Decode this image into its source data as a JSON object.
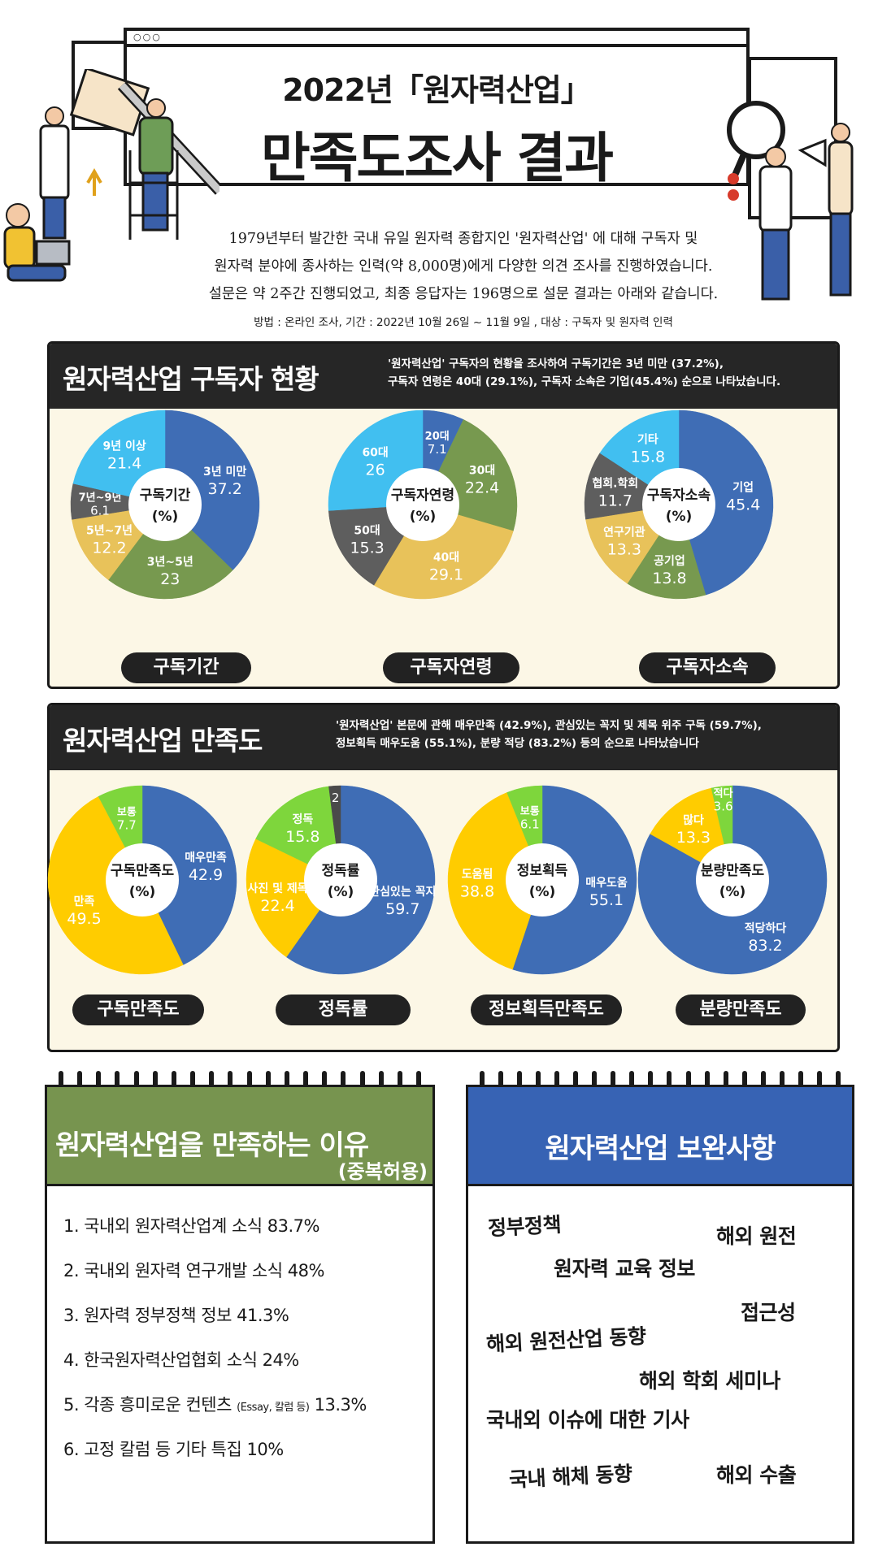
{
  "header": {
    "title_line1": "2022년「원자력산업」",
    "title_line2": "만족도조사 결과",
    "intro_lines": [
      "1979년부터 발간한 국내 유일 원자력 종합지인 '원자력산업' 에 대해  구독자 및",
      "원자력 분야에 종사하는 인력(약 8,000명)에게 다양한 의견 조사를 진행하였습니다.",
      "설문은 약 2주간 진행되었고, 최종 응답자는 196명으로 설문 결과는 아래와 같습니다."
    ],
    "method": "방법 : 온라인 조사, 기간 : 2022년 10월 26일 ~ 11월 9일 , 대상 : 구독자 및 원자력 인력"
  },
  "colors": {
    "blue": "#3f6db5",
    "green": "#77994f",
    "yellow": "#e8c25a",
    "gray": "#5e5e5e",
    "sky": "#41bff0",
    "gold": "#ffcc00",
    "lime": "#7ed63c",
    "dark": "#4a4a4a",
    "panel_bg": "#fcf7e6",
    "board_green": "#77944f",
    "board_blue": "#3763b4"
  },
  "section1": {
    "title": "원자력산업 구독자 현황",
    "desc_line1": "'원자력산업' 구독자의 현황을 조사하여 구독기간은 3년 미만 (37.2%),",
    "desc_line2": "구독자 연령은  40대 (29.1%), 구독자 소속은 기업(45.4%) 순으로 나타났습니다.",
    "captions": [
      "구독기간",
      "구독자연령",
      "구독자소속"
    ]
  },
  "section2": {
    "title": "원자력산업 만족도",
    "desc_line1": "'원자력산업' 본문에 관해 매우만족 (42.9%), 관심있는 꼭지 및 제목 위주 구독 (59.7%),",
    "desc_line2": "정보획득 매우도움 (55.1%), 분량 적당 (83.2%) 등의 순으로 나타났습니다",
    "captions": [
      "구독만족도",
      "정독률",
      "정보획득만족도",
      "분량만족도"
    ]
  },
  "chart_data": [
    {
      "type": "pie",
      "title": "구독기간",
      "center_label": [
        "구독기간",
        "(%)"
      ],
      "categories": [
        "3년 미만",
        "3년~5년",
        "5년~7년",
        "7년~9년",
        "9년 이상"
      ],
      "values": [
        37.2,
        23,
        12.2,
        6.1,
        21.4
      ],
      "colors": [
        "#3f6db5",
        "#77994f",
        "#e8c25a",
        "#5e5e5e",
        "#41bff0"
      ]
    },
    {
      "type": "pie",
      "title": "구독자연령",
      "center_label": [
        "구독자연령",
        "(%)"
      ],
      "categories": [
        "20대",
        "30대",
        "40대",
        "50대",
        "60대"
      ],
      "values": [
        7.1,
        22.4,
        29.1,
        15.3,
        26
      ],
      "colors": [
        "#3f6db5",
        "#77994f",
        "#e8c25a",
        "#5e5e5e",
        "#41bff0"
      ]
    },
    {
      "type": "pie",
      "title": "구독자소속",
      "center_label": [
        "구독자소속",
        "(%)"
      ],
      "categories": [
        "기업",
        "공기업",
        "연구기관",
        "협회.학회",
        "기타"
      ],
      "values": [
        45.4,
        13.8,
        13.3,
        11.7,
        15.8
      ],
      "colors": [
        "#3f6db5",
        "#77994f",
        "#e8c25a",
        "#5e5e5e",
        "#41bff0"
      ]
    },
    {
      "type": "pie",
      "title": "구독만족도",
      "center_label": [
        "구독만족도",
        "(%)"
      ],
      "categories": [
        "매우만족",
        "만족",
        "보통"
      ],
      "values": [
        42.9,
        49.5,
        7.7
      ],
      "colors": [
        "#3f6db5",
        "#ffcc00",
        "#7ed63c"
      ]
    },
    {
      "type": "pie",
      "title": "정독률",
      "center_label": [
        "정독률",
        "(%)"
      ],
      "categories": [
        "관심있는 꼭지",
        "사진 및 제목",
        "정독",
        ""
      ],
      "values": [
        59.7,
        22.4,
        15.8,
        2
      ],
      "colors": [
        "#3f6db5",
        "#ffcc00",
        "#7ed63c",
        "#4a4a4a"
      ]
    },
    {
      "type": "pie",
      "title": "정보획득",
      "center_label": [
        "정보획득",
        "(%)"
      ],
      "categories": [
        "매우도움",
        "도움됨",
        "보통"
      ],
      "values": [
        55.1,
        38.8,
        6.1
      ],
      "colors": [
        "#3f6db5",
        "#ffcc00",
        "#7ed63c"
      ]
    },
    {
      "type": "pie",
      "title": "분량만족도",
      "center_label": [
        "분량만족도",
        "(%)"
      ],
      "categories": [
        "적당하다",
        "많다",
        "적다"
      ],
      "values": [
        83.2,
        13.3,
        3.6
      ],
      "colors": [
        "#3f6db5",
        "#ffcc00",
        "#7ed63c"
      ]
    }
  ],
  "reasons": {
    "title": "원자력산업을 만족하는 이유",
    "subtitle": "(중복허용)",
    "items": [
      {
        "text": "1. 국내외 원자력산업계 소식  83.7%"
      },
      {
        "text": "2. 국내외 원자력 연구개발 소식 48%"
      },
      {
        "text": "3. 원자력 정부정책 정보 41.3%"
      },
      {
        "text": "4. 한국원자력산업협회 소식 24%"
      },
      {
        "text": "5. 각종 흥미로운 컨텐츠 ",
        "small": "(Essay, 칼럼 등)",
        "suffix": " 13.3%"
      },
      {
        "text": "6. 고정 칼럼 등 기타 특집 10%"
      }
    ]
  },
  "improvements": {
    "title": "원자력산업 보완사항",
    "tags": [
      "정부정책",
      "해외 원전",
      "원자력 교육 정보",
      "접근성",
      "해외 원전산업 동향",
      "해외 학회 세미나",
      "국내외 이슈에 대한 기사",
      "국내 해체 동향",
      "해외 수출"
    ]
  }
}
